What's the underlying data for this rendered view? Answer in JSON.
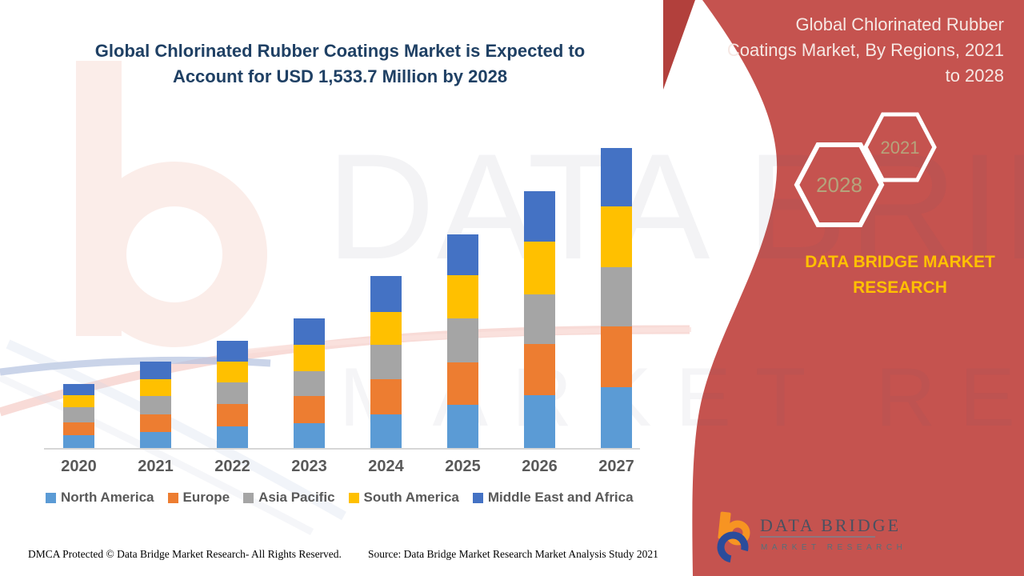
{
  "page": {
    "left_title": {
      "line1": "Global Chlorinated Rubber Coatings Market is Expected to",
      "line2": "Account for USD 1,533.7 Million by 2028"
    },
    "right_panel": {
      "title_lines": [
        "Global Chlorinated Rubber",
        "Coatings Market, By Regions, 2021",
        "to 2028"
      ],
      "hexagons": [
        {
          "year": "2028"
        },
        {
          "year": "2021"
        }
      ],
      "brand_text": "DATA BRIDGE MARKET RESEARCH",
      "logo": {
        "name": "DATA BRIDGE",
        "sub": "MARKET RESEARCH"
      }
    },
    "watermark": {
      "row1": "DATA BRIDGE",
      "row2": "MARKET RESEARCH"
    },
    "footer": {
      "dmca": "DMCA Protected © Data Bridge Market Research- All Rights Reserved.",
      "source": "Source: Data Bridge Market Research Market Analysis Study 2021"
    },
    "theme": {
      "panel_red": "#C5534F",
      "triangle_red": "#B2403C",
      "title_navy": "#1F4064",
      "brand_yellow": "#FFC000",
      "hexagon_year_text": "#B5A47C",
      "axis_label_gray": "#595959",
      "right_title_text": "#F6E8E4"
    }
  },
  "chart_data": {
    "type": "bar",
    "stacked": true,
    "title": "Global Chlorinated Rubber Coatings Market is Expected to Account for USD 1,533.7 Million by 2028",
    "subtitle": "Global Chlorinated Rubber Coatings Market, By Regions, 2021 to 2028",
    "categories": [
      "2020",
      "2021",
      "2022",
      "2023",
      "2024",
      "2025",
      "2026",
      "2027"
    ],
    "series": [
      {
        "name": "North America",
        "color": "#5B9BD5",
        "values": [
          16,
          20,
          27,
          31,
          42,
          54,
          66,
          76
        ]
      },
      {
        "name": "Europe",
        "color": "#ED7D31",
        "values": [
          16,
          22,
          28,
          34,
          44,
          53,
          64,
          76
        ]
      },
      {
        "name": "Asia Pacific",
        "color": "#A5A5A5",
        "values": [
          19,
          23,
          27,
          31,
          43,
          55,
          62,
          74
        ]
      },
      {
        "name": "South America",
        "color": "#FFC000",
        "values": [
          15,
          21,
          26,
          33,
          41,
          54,
          66,
          76
        ]
      },
      {
        "name": "Middle East and Africa",
        "color": "#4472C4",
        "values": [
          14,
          22,
          26,
          33,
          45,
          51,
          63,
          73
        ]
      }
    ],
    "stack_totals": [
      80,
      108,
      134,
      162,
      215,
      267,
      321,
      375
    ],
    "value_axis": "none shown (relative units, values estimated from bar pixel heights)",
    "xlabel": "",
    "ylabel": "",
    "gridlines": false,
    "legend_position": "bottom"
  }
}
